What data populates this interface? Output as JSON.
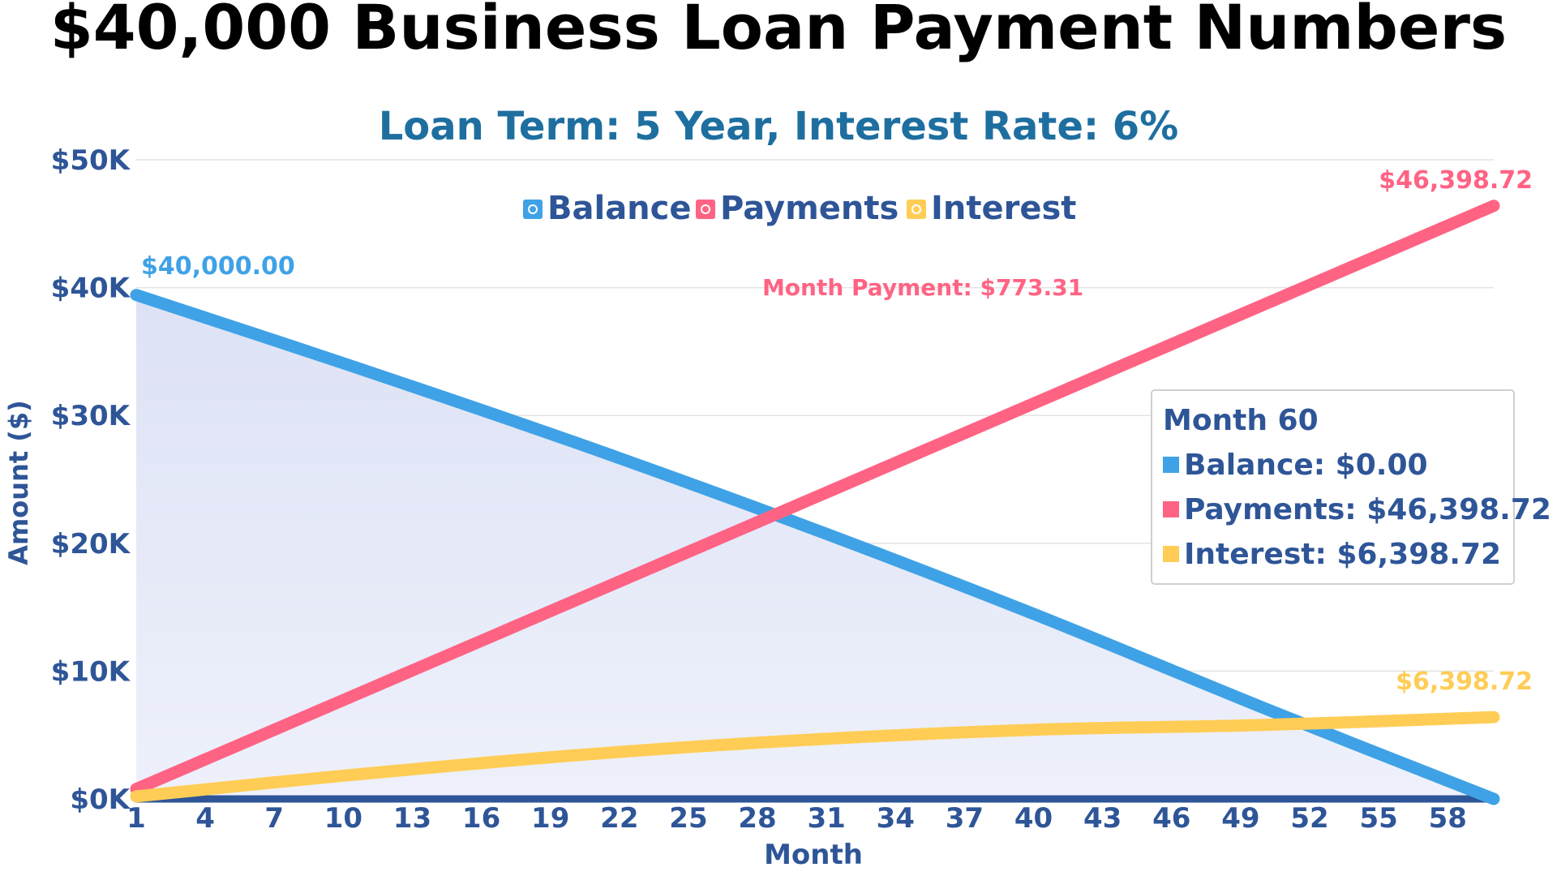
{
  "title": "$40,000 Business Loan Payment Numbers",
  "subtitle": "Loan Term: 5 Year, Interest Rate: 6%",
  "colors": {
    "balance": "#3FA2E6",
    "payments": "#FF6384",
    "interest": "#FFCD56",
    "axis": "#2E5597",
    "subtitle": "#1E6FA0",
    "grid": "#E3E3E3",
    "fill": "#DDE2F5"
  },
  "legend": {
    "items": [
      "Balance",
      "Payments",
      "Interest"
    ]
  },
  "annotations": {
    "start_balance": "$40,000.00",
    "end_payments": "$46,398.72",
    "end_interest": "$6,398.72",
    "month_payment": "Month Payment: $773.31"
  },
  "tooltip": {
    "title": "Month 60",
    "balance": "Balance: $0.00",
    "payments": "Payments: $46,398.72",
    "interest": "Interest: $6,398.72"
  },
  "chart_data": {
    "type": "line",
    "title": "$40,000 Business Loan Payment Numbers",
    "subtitle": "Loan Term: 5 Year, Interest Rate: 6%",
    "xlabel": "Month",
    "ylabel": "Amount ($)",
    "x_range": [
      1,
      60
    ],
    "ylim": [
      0,
      50000
    ],
    "x_ticks": [
      "1",
      "4",
      "7",
      "10",
      "13",
      "16",
      "19",
      "22",
      "25",
      "28",
      "31",
      "34",
      "37",
      "40",
      "43",
      "46",
      "49",
      "52",
      "55",
      "58"
    ],
    "y_ticks": [
      "$0K",
      "$10K",
      "$20K",
      "$30K",
      "$40K",
      "$50K"
    ],
    "legend_position": "top-center",
    "grid": true,
    "loan": {
      "principal": 40000,
      "annual_rate": 0.06,
      "months": 60,
      "monthly_payment": 773.31
    },
    "series": [
      {
        "name": "Balance",
        "key": "balance",
        "filled": true,
        "x": [
          1,
          10,
          20,
          30,
          40,
          50,
          60
        ],
        "values": [
          39426.69,
          34085.53,
          27936.43,
          21408.47,
          14478.19,
          7121.04,
          0.0
        ]
      },
      {
        "name": "Payments",
        "key": "payments",
        "x": [
          1,
          10,
          20,
          30,
          40,
          50,
          60
        ],
        "values": [
          773.31,
          7733.1,
          15466.2,
          23199.3,
          30932.4,
          38665.5,
          46398.72
        ]
      },
      {
        "name": "Interest",
        "key": "interest",
        "x": [
          1,
          10,
          20,
          30,
          40,
          50,
          60
        ],
        "values": [
          200.0,
          1818.63,
          3402.63,
          4607.77,
          5410.59,
          5786.54,
          6398.72
        ]
      }
    ]
  }
}
